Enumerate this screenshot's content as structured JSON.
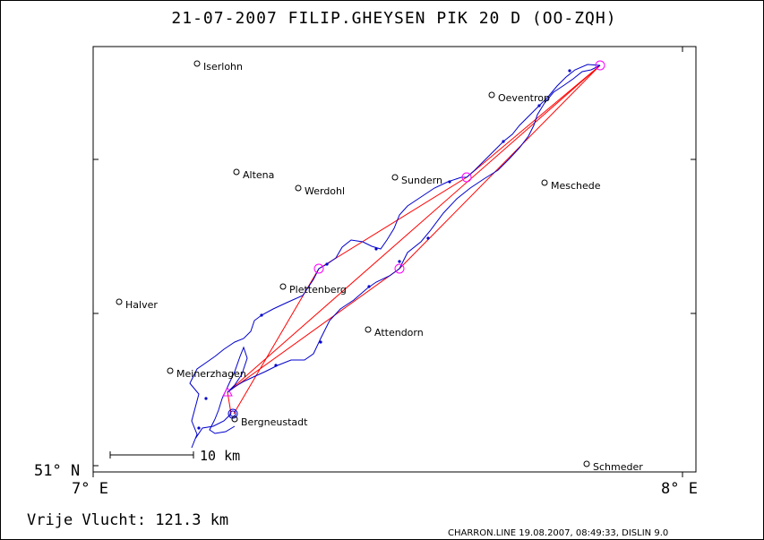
{
  "title": "21-07-2007   FILIP.GHEYSEN   PIK 20 D (OO-ZQH)",
  "axis": {
    "lat_label": "51° N",
    "lon_left_label": "7° E",
    "lon_right_label": "8° E"
  },
  "scale_bar_label": "10 km",
  "distance_text": "Vrije Vlucht:  121.3 km",
  "footer": "CHARRON.LINE 19.08.2007, 08:49:33, DISLIN 9.0",
  "colors": {
    "track": "#0000cc",
    "task": "#ff0000",
    "turnpoint": "#ff00ff",
    "frame": "#000000"
  },
  "towns": [
    {
      "name": "Iserlohn"
    },
    {
      "name": "Oeventrop"
    },
    {
      "name": "Altena"
    },
    {
      "name": "Werdohl"
    },
    {
      "name": "Sundern"
    },
    {
      "name": "Meschede"
    },
    {
      "name": "Plettenberg"
    },
    {
      "name": "Halver"
    },
    {
      "name": "Attendorn"
    },
    {
      "name": "Meinerzhagen"
    },
    {
      "name": "Bergneustadt"
    },
    {
      "name": "Schmeder"
    }
  ]
}
